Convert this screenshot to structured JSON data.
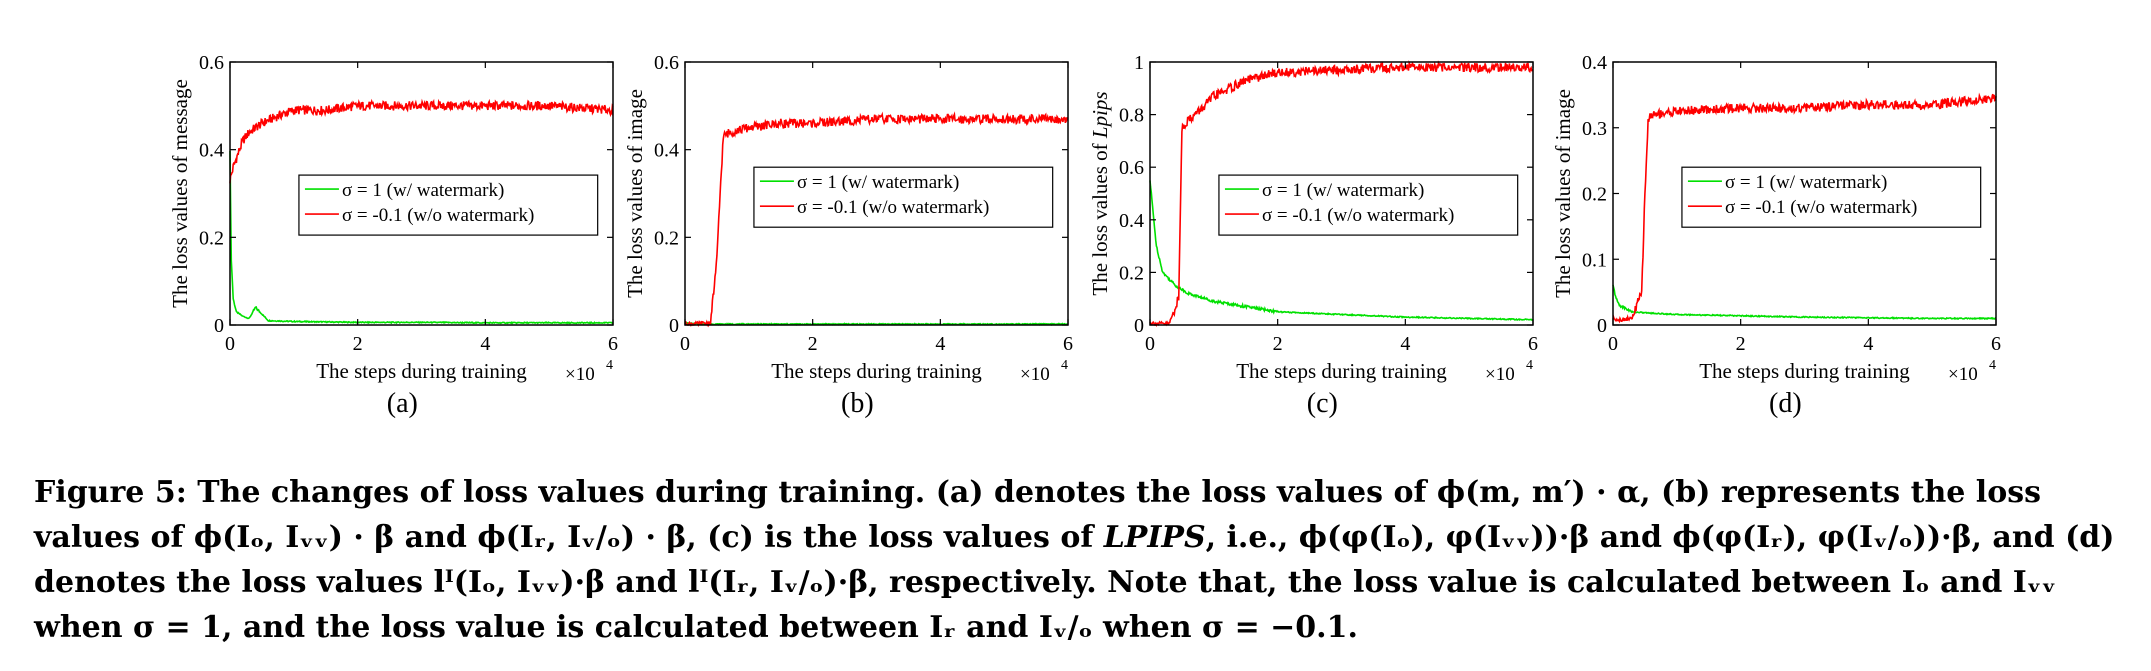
{
  "chart_data": [
    {
      "type": "line",
      "panel_label": "(a)",
      "xlabel": "The steps during training",
      "x_exponent": "×10",
      "x_exponent_power": "4",
      "ylabel": "The loss values of message",
      "xlim": [
        0,
        6
      ],
      "ylim": [
        0,
        0.6
      ],
      "xticks": [
        "0",
        "2",
        "4",
        "6"
      ],
      "yticks": [
        "0",
        "0.2",
        "0.4",
        "0.6"
      ],
      "legend": "inside-center-right",
      "series": [
        {
          "name": "σ = 1 (w/ watermark)",
          "color": "#00e000",
          "x": [
            0,
            0.02,
            0.05,
            0.1,
            0.2,
            0.3,
            0.4,
            0.6,
            1,
            2,
            3,
            4,
            5,
            6
          ],
          "y": [
            0.4,
            0.15,
            0.06,
            0.03,
            0.02,
            0.015,
            0.04,
            0.01,
            0.008,
            0.006,
            0.006,
            0.005,
            0.005,
            0.005
          ]
        },
        {
          "name": "σ = -0.1 (w/o watermark)",
          "color": "#ff0000",
          "x": [
            0,
            0.05,
            0.1,
            0.2,
            0.3,
            0.5,
            0.8,
            1,
            1.5,
            2,
            3,
            4,
            5,
            6
          ],
          "y": [
            0.33,
            0.36,
            0.38,
            0.42,
            0.44,
            0.46,
            0.48,
            0.49,
            0.49,
            0.5,
            0.5,
            0.5,
            0.5,
            0.49
          ]
        }
      ]
    },
    {
      "type": "line",
      "panel_label": "(b)",
      "xlabel": "The steps during training",
      "x_exponent": "×10",
      "x_exponent_power": "4",
      "ylabel": "The loss values of image",
      "xlim": [
        0,
        6
      ],
      "ylim": [
        0,
        0.6
      ],
      "xticks": [
        "0",
        "2",
        "4",
        "6"
      ],
      "yticks": [
        "0",
        "0.2",
        "0.4",
        "0.6"
      ],
      "legend": "inside-upper-right",
      "series": [
        {
          "name": "σ = 1 (w/ watermark)",
          "color": "#00e000",
          "x": [
            0,
            0.1,
            0.5,
            1,
            2,
            3,
            4,
            5,
            6
          ],
          "y": [
            0.005,
            0.003,
            0.002,
            0.002,
            0.002,
            0.002,
            0.002,
            0.002,
            0.002
          ]
        },
        {
          "name": "σ = -0.1 (w/o watermark)",
          "color": "#ff0000",
          "x": [
            0,
            0.1,
            0.4,
            0.5,
            0.55,
            0.6,
            0.7,
            1,
            1.5,
            2,
            3,
            4,
            5,
            6
          ],
          "y": [
            0.005,
            0.002,
            0.005,
            0.15,
            0.3,
            0.43,
            0.44,
            0.45,
            0.46,
            0.46,
            0.47,
            0.47,
            0.47,
            0.47
          ]
        }
      ]
    },
    {
      "type": "line",
      "panel_label": "(c)",
      "xlabel": "The steps during training",
      "x_exponent": "×10",
      "x_exponent_power": "4",
      "ylabel": "The loss values of ",
      "ylabel_italic": "Lpips",
      "xlim": [
        0,
        6
      ],
      "ylim": [
        0,
        1
      ],
      "xticks": [
        "0",
        "2",
        "4",
        "6"
      ],
      "yticks": [
        "0",
        "0.2",
        "0.4",
        "0.6",
        "0.8",
        "1"
      ],
      "legend": "inside-center-right",
      "series": [
        {
          "name": "σ = 1 (w/ watermark)",
          "color": "#00e000",
          "x": [
            0,
            0.1,
            0.2,
            0.4,
            0.6,
            1,
            1.5,
            2,
            3,
            4,
            5,
            6
          ],
          "y": [
            0.55,
            0.3,
            0.2,
            0.15,
            0.12,
            0.09,
            0.07,
            0.05,
            0.04,
            0.03,
            0.025,
            0.02
          ]
        },
        {
          "name": "σ = -0.1 (w/o watermark)",
          "color": "#ff0000",
          "x": [
            0,
            0.1,
            0.3,
            0.45,
            0.5,
            0.6,
            0.8,
            1,
            1.5,
            2,
            3,
            4,
            5,
            6
          ],
          "y": [
            0.01,
            0.005,
            0.005,
            0.1,
            0.75,
            0.78,
            0.82,
            0.87,
            0.93,
            0.96,
            0.97,
            0.98,
            0.98,
            0.98
          ]
        }
      ]
    },
    {
      "type": "line",
      "panel_label": "(d)",
      "xlabel": "The steps during training",
      "x_exponent": "×10",
      "x_exponent_power": "4",
      "ylabel": "The loss values of image",
      "xlim": [
        0,
        6
      ],
      "ylim": [
        0,
        0.4
      ],
      "xticks": [
        "0",
        "2",
        "4",
        "6"
      ],
      "yticks": [
        "0",
        "0.1",
        "0.2",
        "0.3",
        "0.4"
      ],
      "legend": "inside-upper-right",
      "series": [
        {
          "name": "σ = 1 (w/ watermark)",
          "color": "#00e000",
          "x": [
            0,
            0.05,
            0.1,
            0.3,
            0.6,
            1,
            2,
            3,
            4,
            5,
            6
          ],
          "y": [
            0.06,
            0.04,
            0.03,
            0.02,
            0.018,
            0.016,
            0.014,
            0.012,
            0.011,
            0.01,
            0.01
          ]
        },
        {
          "name": "σ = -0.1 (w/o watermark)",
          "color": "#ff0000",
          "x": [
            0,
            0.1,
            0.3,
            0.45,
            0.5,
            0.55,
            0.6,
            1,
            2,
            3,
            4,
            5,
            6
          ],
          "y": [
            0.01,
            0.008,
            0.01,
            0.05,
            0.2,
            0.31,
            0.32,
            0.325,
            0.33,
            0.33,
            0.335,
            0.335,
            0.345
          ]
        }
      ]
    }
  ],
  "caption": {
    "p1": "Figure 5: The changes of loss values during training. (a) denotes the loss values of ϕ(m, m′) · α, (b) represents the loss values of",
    "p2": "ϕ(Iₒ, Iᵥᵥ) · β and ϕ(Iᵣ, Iᵥ/ₒ) · β, (c) is the loss values of ",
    "p2_italic": "LPIPS",
    "p3": ", i.e., ϕ(φ(Iₒ), φ(Iᵥᵥ))·β and ϕ(φ(Iᵣ), φ(Iᵥ/ₒ))·β, and (d) denotes the loss",
    "p4": "values lᴵ(Iₒ, Iᵥᵥ)·β and lᴵ(Iᵣ, Iᵥ/ₒ)·β, respectively. Note that, the loss value is calculated between Iₒ and Iᵥᵥ when σ = 1, and the loss",
    "p5": "value is calculated between Iᵣ and Iᵥ/ₒ when σ = −0.1."
  }
}
